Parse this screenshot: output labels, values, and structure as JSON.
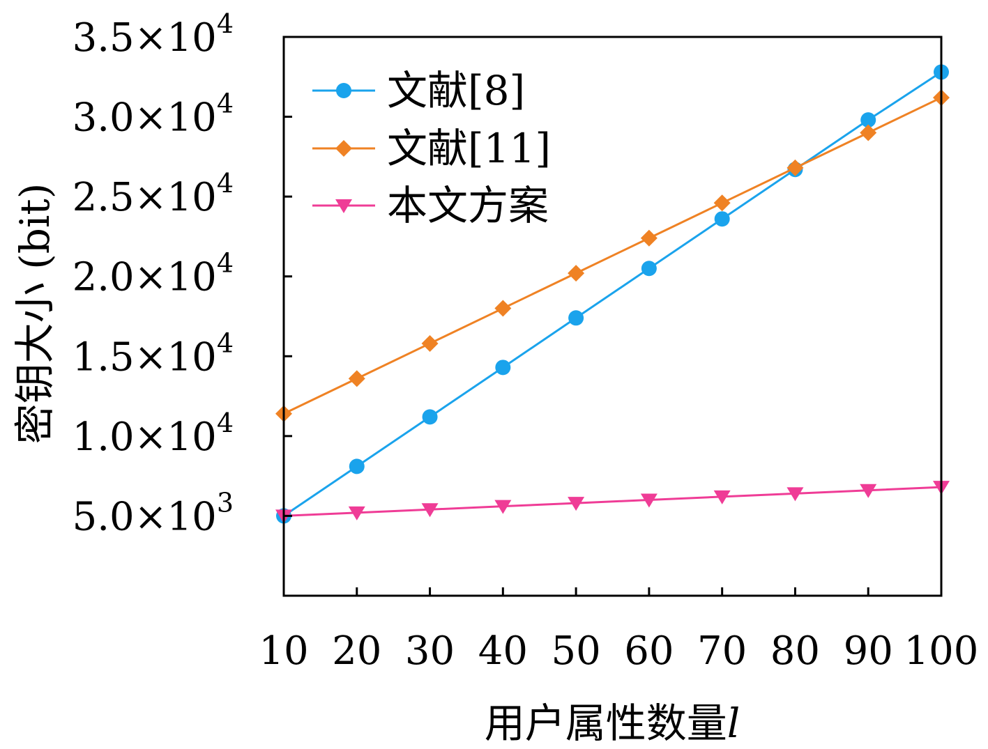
{
  "chart_data": {
    "type": "line",
    "title": "",
    "xlabel": "用户属性数量",
    "xlabel_var": "l",
    "ylabel": "密钥大小 (bit)",
    "x": [
      10,
      20,
      30,
      40,
      50,
      60,
      70,
      80,
      90,
      100
    ],
    "xlim": [
      10,
      100
    ],
    "ylim": [
      0,
      35000
    ],
    "x_tick_labels": [
      "10",
      "20",
      "30",
      "40",
      "50",
      "60",
      "70",
      "80",
      "90",
      "100"
    ],
    "y_ticks": [
      {
        "value": 5000,
        "mantissa": "5.0",
        "exp": "3"
      },
      {
        "value": 10000,
        "mantissa": "1.0",
        "exp": "4"
      },
      {
        "value": 15000,
        "mantissa": "1.5",
        "exp": "4"
      },
      {
        "value": 20000,
        "mantissa": "2.0",
        "exp": "4"
      },
      {
        "value": 25000,
        "mantissa": "2.5",
        "exp": "4"
      },
      {
        "value": 30000,
        "mantissa": "3.0",
        "exp": "4"
      },
      {
        "value": 35000,
        "mantissa": "3.5",
        "exp": "4"
      }
    ],
    "y_tick_times": "×10",
    "grid": false,
    "legend_position": "top-left",
    "series": [
      {
        "name": "文献[8]",
        "color": "#1aa3ec",
        "marker": "circle",
        "values": [
          5000,
          8100,
          11200,
          14300,
          17400,
          20500,
          23600,
          26700,
          29800,
          32800
        ]
      },
      {
        "name": "文献[11]",
        "color": "#ef8224",
        "marker": "diamond",
        "values": [
          11400,
          13600,
          15800,
          18000,
          20200,
          22400,
          24600,
          26800,
          29000,
          31200
        ]
      },
      {
        "name": "本文方案",
        "color": "#ef3c96",
        "marker": "triangle-down",
        "values": [
          5000,
          5200,
          5400,
          5600,
          5800,
          6000,
          6200,
          6400,
          6600,
          6800
        ]
      }
    ]
  }
}
